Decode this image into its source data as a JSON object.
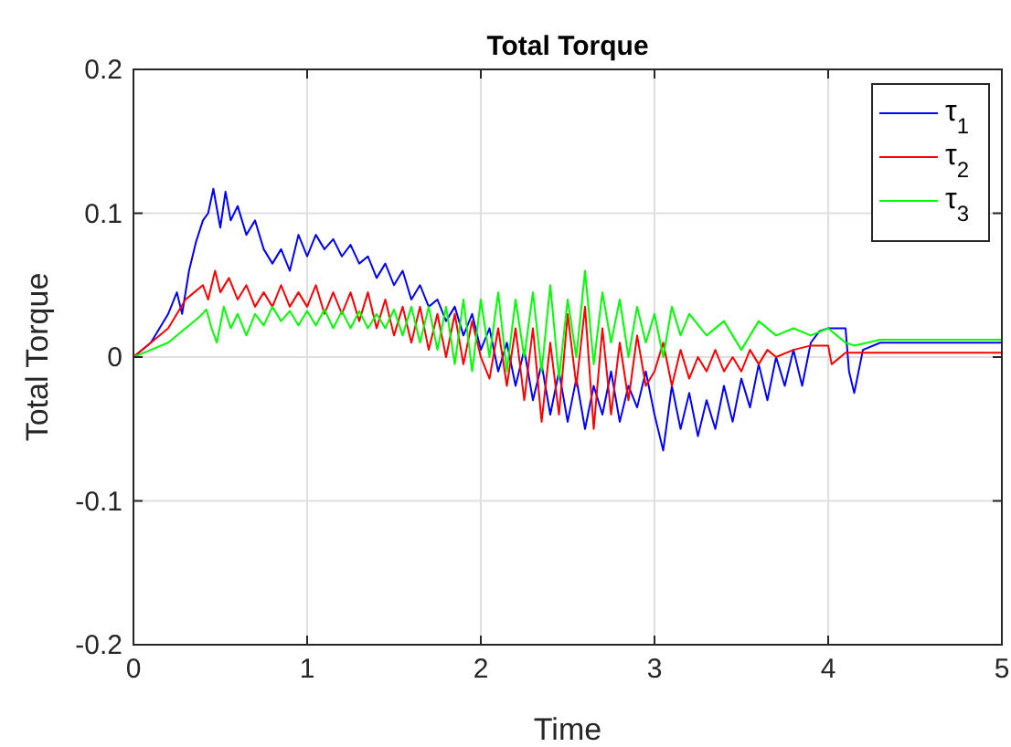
{
  "chart_data": {
    "type": "line",
    "title": "Total Torque",
    "xlabel": "Time",
    "ylabel": "Total Torque",
    "xlim": [
      0,
      5
    ],
    "xticks": [
      0,
      1,
      2,
      3,
      4,
      5
    ],
    "ylim": [
      -0.2,
      0.2
    ],
    "yticks": [
      -0.2,
      -0.1,
      0,
      0.1,
      0.2
    ],
    "grid": true,
    "legend": "top right",
    "line_style": "solid",
    "marker": "none",
    "series": [
      {
        "name": "τ$_{1}$",
        "color": "#0000ff",
        "x": [
          0,
          0.1,
          0.2,
          0.25,
          0.28,
          0.32,
          0.36,
          0.4,
          0.43,
          0.46,
          0.5,
          0.53,
          0.56,
          0.6,
          0.65,
          0.7,
          0.75,
          0.8,
          0.85,
          0.9,
          0.95,
          1.0,
          1.05,
          1.1,
          1.15,
          1.2,
          1.25,
          1.3,
          1.35,
          1.4,
          1.45,
          1.5,
          1.55,
          1.6,
          1.65,
          1.7,
          1.75,
          1.8,
          1.85,
          1.9,
          1.95,
          2.0,
          2.05,
          2.1,
          2.15,
          2.2,
          2.25,
          2.3,
          2.35,
          2.4,
          2.45,
          2.5,
          2.55,
          2.6,
          2.65,
          2.7,
          2.75,
          2.8,
          2.85,
          2.9,
          2.95,
          3.0,
          3.05,
          3.1,
          3.15,
          3.2,
          3.25,
          3.3,
          3.35,
          3.4,
          3.45,
          3.5,
          3.55,
          3.6,
          3.65,
          3.7,
          3.75,
          3.8,
          3.85,
          3.9,
          3.95,
          4.0,
          4.1,
          4.12,
          4.15,
          4.2,
          4.3,
          5
        ],
        "values": [
          0,
          0.01,
          0.03,
          0.045,
          0.03,
          0.06,
          0.08,
          0.095,
          0.1,
          0.117,
          0.09,
          0.115,
          0.095,
          0.105,
          0.085,
          0.095,
          0.075,
          0.065,
          0.075,
          0.06,
          0.085,
          0.07,
          0.085,
          0.075,
          0.082,
          0.07,
          0.078,
          0.065,
          0.07,
          0.055,
          0.065,
          0.05,
          0.06,
          0.04,
          0.05,
          0.035,
          0.04,
          0.025,
          0.035,
          0.015,
          0.03,
          0.005,
          0.02,
          -0.01,
          0.01,
          -0.02,
          0.005,
          -0.03,
          -0.005,
          -0.04,
          -0.01,
          -0.045,
          -0.015,
          -0.05,
          -0.02,
          -0.04,
          -0.01,
          -0.045,
          -0.02,
          -0.035,
          -0.01,
          -0.04,
          -0.065,
          -0.02,
          -0.05,
          -0.025,
          -0.055,
          -0.03,
          -0.05,
          -0.02,
          -0.045,
          -0.015,
          -0.035,
          -0.005,
          -0.03,
          0.0,
          -0.02,
          0.005,
          -0.02,
          0.01,
          0.018,
          0.02,
          0.02,
          -0.01,
          -0.025,
          0.005,
          0.01,
          0.01
        ]
      },
      {
        "name": "τ$_{2}$",
        "color": "#ff0000",
        "x": [
          0,
          0.1,
          0.2,
          0.25,
          0.3,
          0.35,
          0.4,
          0.43,
          0.47,
          0.5,
          0.55,
          0.6,
          0.65,
          0.7,
          0.75,
          0.8,
          0.85,
          0.9,
          0.95,
          1.0,
          1.05,
          1.1,
          1.15,
          1.2,
          1.25,
          1.3,
          1.35,
          1.4,
          1.45,
          1.5,
          1.55,
          1.6,
          1.65,
          1.7,
          1.75,
          1.8,
          1.85,
          1.9,
          1.95,
          2.0,
          2.05,
          2.1,
          2.15,
          2.2,
          2.25,
          2.3,
          2.35,
          2.4,
          2.45,
          2.5,
          2.55,
          2.6,
          2.65,
          2.7,
          2.75,
          2.8,
          2.85,
          2.9,
          2.95,
          3.0,
          3.05,
          3.1,
          3.15,
          3.2,
          3.25,
          3.3,
          3.35,
          3.4,
          3.45,
          3.5,
          3.55,
          3.6,
          3.65,
          3.7,
          3.8,
          3.9,
          4.0,
          4.02,
          4.1,
          5
        ],
        "values": [
          0,
          0.01,
          0.02,
          0.03,
          0.04,
          0.045,
          0.05,
          0.04,
          0.06,
          0.045,
          0.055,
          0.04,
          0.05,
          0.035,
          0.045,
          0.035,
          0.05,
          0.035,
          0.045,
          0.035,
          0.05,
          0.03,
          0.045,
          0.03,
          0.045,
          0.025,
          0.045,
          0.02,
          0.04,
          0.015,
          0.035,
          0.01,
          0.035,
          0.005,
          0.03,
          0.0,
          0.03,
          -0.005,
          0.025,
          0.0,
          -0.015,
          0.02,
          -0.02,
          0.02,
          -0.03,
          0.02,
          -0.045,
          0.01,
          -0.04,
          0.03,
          -0.02,
          0.035,
          -0.05,
          0.02,
          -0.04,
          0.01,
          -0.03,
          0.015,
          -0.02,
          -0.01,
          0.01,
          -0.02,
          0.005,
          -0.015,
          0.0,
          -0.01,
          0.005,
          -0.01,
          0.0,
          -0.01,
          0.005,
          -0.005,
          0.005,
          0.0,
          0.005,
          0.008,
          0.008,
          -0.005,
          0.003,
          0.003
        ]
      },
      {
        "name": "τ$_{3}$",
        "color": "#00ff00",
        "x": [
          0,
          0.1,
          0.2,
          0.3,
          0.38,
          0.42,
          0.45,
          0.48,
          0.52,
          0.56,
          0.6,
          0.65,
          0.7,
          0.75,
          0.8,
          0.85,
          0.9,
          0.95,
          1.0,
          1.05,
          1.1,
          1.15,
          1.2,
          1.25,
          1.3,
          1.35,
          1.4,
          1.45,
          1.5,
          1.55,
          1.6,
          1.65,
          1.7,
          1.75,
          1.8,
          1.85,
          1.9,
          1.95,
          2.0,
          2.05,
          2.1,
          2.15,
          2.2,
          2.25,
          2.3,
          2.35,
          2.4,
          2.45,
          2.5,
          2.55,
          2.6,
          2.65,
          2.7,
          2.75,
          2.8,
          2.85,
          2.9,
          2.95,
          3.0,
          3.05,
          3.1,
          3.15,
          3.2,
          3.3,
          3.4,
          3.5,
          3.6,
          3.7,
          3.8,
          3.9,
          4.0,
          4.05,
          4.1,
          4.15,
          4.3,
          5
        ],
        "values": [
          0,
          0.005,
          0.01,
          0.02,
          0.028,
          0.033,
          0.02,
          0.01,
          0.035,
          0.02,
          0.03,
          0.015,
          0.03,
          0.022,
          0.035,
          0.025,
          0.032,
          0.022,
          0.032,
          0.022,
          0.033,
          0.02,
          0.032,
          0.02,
          0.032,
          0.02,
          0.03,
          0.02,
          0.033,
          0.015,
          0.035,
          0.01,
          0.035,
          0.005,
          0.035,
          -0.005,
          0.04,
          -0.01,
          0.04,
          0.0,
          0.045,
          -0.01,
          0.04,
          0.0,
          0.045,
          -0.01,
          0.05,
          -0.015,
          0.04,
          0.0,
          0.06,
          -0.005,
          0.045,
          0.01,
          0.04,
          0.0,
          0.035,
          0.01,
          0.03,
          0.0,
          0.035,
          0.015,
          0.03,
          0.015,
          0.025,
          0.005,
          0.025,
          0.015,
          0.02,
          0.015,
          0.02,
          0.015,
          0.01,
          0.008,
          0.012,
          0.012
        ]
      }
    ]
  }
}
